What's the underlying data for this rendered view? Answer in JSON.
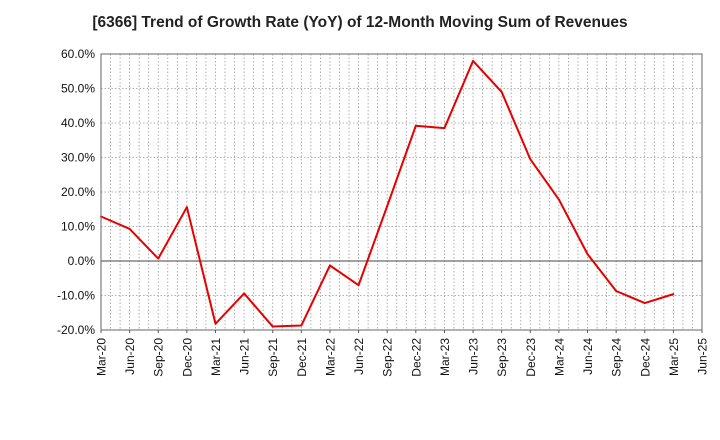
{
  "chart_data": {
    "type": "line",
    "title": "[6366]  Trend of Growth Rate (YoY) of 12-Month Moving Sum of Revenues",
    "xlabel": "",
    "ylabel": "",
    "ylim": [
      -20,
      60
    ],
    "yticks": [
      60,
      50,
      40,
      30,
      20,
      10,
      0,
      -10,
      -20
    ],
    "ytick_labels": [
      "60.0%",
      "50.0%",
      "40.0%",
      "30.0%",
      "20.0%",
      "10.0%",
      "0.0%",
      "-10.0%",
      "-20.0%"
    ],
    "x_months": [
      "Mar-20",
      "Apr-20",
      "May-20",
      "Jun-20",
      "Jul-20",
      "Aug-20",
      "Sep-20",
      "Oct-20",
      "Nov-20",
      "Dec-20",
      "Jan-21",
      "Feb-21",
      "Mar-21",
      "Apr-21",
      "May-21",
      "Jun-21",
      "Jul-21",
      "Aug-21",
      "Sep-21",
      "Oct-21",
      "Nov-21",
      "Dec-21",
      "Jan-22",
      "Feb-22",
      "Mar-22",
      "Apr-22",
      "May-22",
      "Jun-22",
      "Jul-22",
      "Aug-22",
      "Sep-22",
      "Oct-22",
      "Nov-22",
      "Dec-22",
      "Jan-23",
      "Feb-23",
      "Mar-23",
      "Apr-23",
      "May-23",
      "Jun-23",
      "Jul-23",
      "Aug-23",
      "Sep-23",
      "Oct-23",
      "Nov-23",
      "Dec-23",
      "Jan-24",
      "Feb-24",
      "Mar-24",
      "Apr-24",
      "May-24",
      "Jun-24",
      "Jul-24",
      "Aug-24",
      "Sep-24",
      "Oct-24",
      "Nov-24",
      "Dec-24",
      "Jan-25",
      "Feb-25",
      "Mar-25",
      "Apr-25",
      "May-25",
      "Jun-25"
    ],
    "x_tick_labels": [
      "Mar-20",
      "Jun-20",
      "Sep-20",
      "Dec-20",
      "Mar-21",
      "Jun-21",
      "Sep-21",
      "Dec-21",
      "Mar-22",
      "Jun-22",
      "Sep-22",
      "Dec-22",
      "Mar-23",
      "Jun-23",
      "Sep-23",
      "Dec-23",
      "Mar-24",
      "Jun-24",
      "Sep-24",
      "Dec-24",
      "Mar-25",
      "Jun-25"
    ],
    "grid": true,
    "series": [
      {
        "color": "#e60000",
        "points": [
          {
            "x": "Mar-20",
            "y": 12.9
          },
          {
            "x": "Jun-20",
            "y": 9.3
          },
          {
            "x": "Sep-20",
            "y": 0.7
          },
          {
            "x": "Dec-20",
            "y": 15.6
          },
          {
            "x": "Mar-21",
            "y": -18.2
          },
          {
            "x": "Jun-21",
            "y": -9.4
          },
          {
            "x": "Sep-21",
            "y": -19.0
          },
          {
            "x": "Dec-21",
            "y": -18.7
          },
          {
            "x": "Mar-22",
            "y": -1.3
          },
          {
            "x": "Jun-22",
            "y": -7.0
          },
          {
            "x": "Sep-22",
            "y": 15.9
          },
          {
            "x": "Dec-22",
            "y": 39.2
          },
          {
            "x": "Mar-23",
            "y": 38.5
          },
          {
            "x": "Jun-23",
            "y": 58.0
          },
          {
            "x": "Sep-23",
            "y": 49.0
          },
          {
            "x": "Dec-23",
            "y": 29.5
          },
          {
            "x": "Mar-24",
            "y": 17.8
          },
          {
            "x": "Jun-24",
            "y": 2.0
          },
          {
            "x": "Sep-24",
            "y": -8.7
          },
          {
            "x": "Dec-24",
            "y": -12.2
          },
          {
            "x": "Mar-25",
            "y": -9.6
          }
        ]
      }
    ]
  }
}
